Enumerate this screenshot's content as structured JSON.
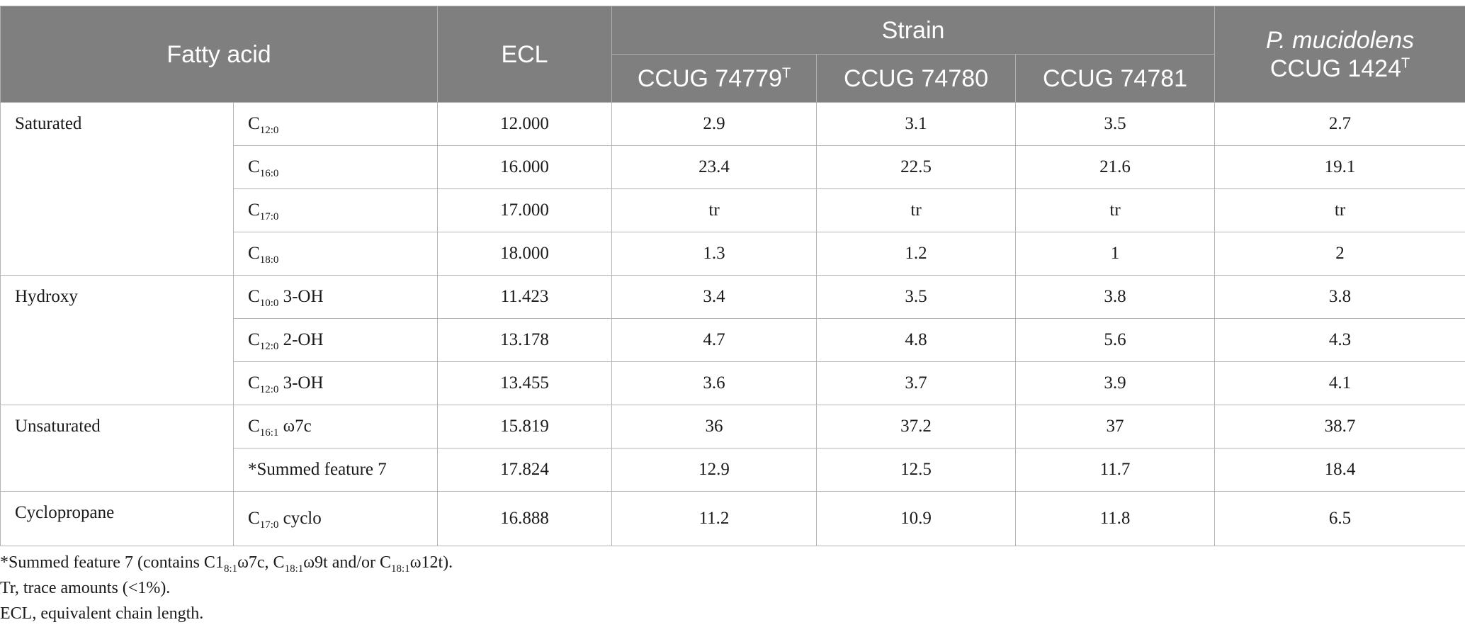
{
  "header": {
    "fatty_acid": "Fatty acid",
    "ecl": "ECL",
    "strain": "Strain",
    "strain1_base": "CCUG 74779",
    "strain1_sup": "T",
    "strain2": "CCUG 74780",
    "strain3": "CCUG 74781",
    "ref_species": "P. mucidolens",
    "ref_strain_base": "CCUG 1424",
    "ref_strain_sup": "T"
  },
  "groups": {
    "saturated": "Saturated",
    "hydroxy": "Hydroxy",
    "unsaturated": "Unsaturated",
    "cyclopropane": "Cyclopropane"
  },
  "rows": [
    {
      "fa_base": "C",
      "fa_sub": "12:0",
      "fa_rest": "",
      "ecl": "12.000",
      "v1": "2.9",
      "v2": "3.1",
      "v3": "3.5",
      "v4": "2.7"
    },
    {
      "fa_base": "C",
      "fa_sub": "16:0",
      "fa_rest": "",
      "ecl": "16.000",
      "v1": "23.4",
      "v2": "22.5",
      "v3": "21.6",
      "v4": "19.1"
    },
    {
      "fa_base": "C",
      "fa_sub": "17:0",
      "fa_rest": "",
      "ecl": "17.000",
      "v1": "tr",
      "v2": "tr",
      "v3": "tr",
      "v4": "tr"
    },
    {
      "fa_base": "C",
      "fa_sub": "18:0",
      "fa_rest": "",
      "ecl": "18.000",
      "v1": "1.3",
      "v2": "1.2",
      "v3": "1",
      "v4": "2"
    },
    {
      "fa_base": "C",
      "fa_sub": "10:0",
      "fa_rest": " 3-OH",
      "ecl": "11.423",
      "v1": "3.4",
      "v2": "3.5",
      "v3": "3.8",
      "v4": "3.8"
    },
    {
      "fa_base": "C",
      "fa_sub": "12:0",
      "fa_rest": " 2-OH",
      "ecl": "13.178",
      "v1": "4.7",
      "v2": "4.8",
      "v3": "5.6",
      "v4": "4.3"
    },
    {
      "fa_base": "C",
      "fa_sub": "12:0",
      "fa_rest": " 3-OH",
      "ecl": "13.455",
      "v1": "3.6",
      "v2": "3.7",
      "v3": "3.9",
      "v4": "4.1"
    },
    {
      "fa_base": "C",
      "fa_sub": "16:1",
      "fa_rest": " ω7c",
      "ecl": "15.819",
      "v1": "36",
      "v2": "37.2",
      "v3": "37",
      "v4": "38.7"
    },
    {
      "fa_base": "*Summed feature 7",
      "fa_sub": "",
      "fa_rest": "",
      "ecl": "17.824",
      "v1": "12.9",
      "v2": "12.5",
      "v3": "11.7",
      "v4": "18.4"
    },
    {
      "fa_base": "C",
      "fa_sub": "17:0",
      "fa_rest": " cyclo",
      "ecl": "16.888",
      "v1": "11.2",
      "v2": "10.9",
      "v3": "11.8",
      "v4": "6.5"
    }
  ],
  "footnotes": {
    "f1_a": "*Summed feature 7 (contains C1",
    "f1_sub1": "8:1",
    "f1_b": "ω7c, C",
    "f1_sub2": "18:1",
    "f1_c": "ω9t and/or C",
    "f1_sub3": "18:1",
    "f1_d": "ω12t).",
    "f2": "Tr, trace amounts (<1%).",
    "f3": "ECL, equivalent chain length."
  }
}
